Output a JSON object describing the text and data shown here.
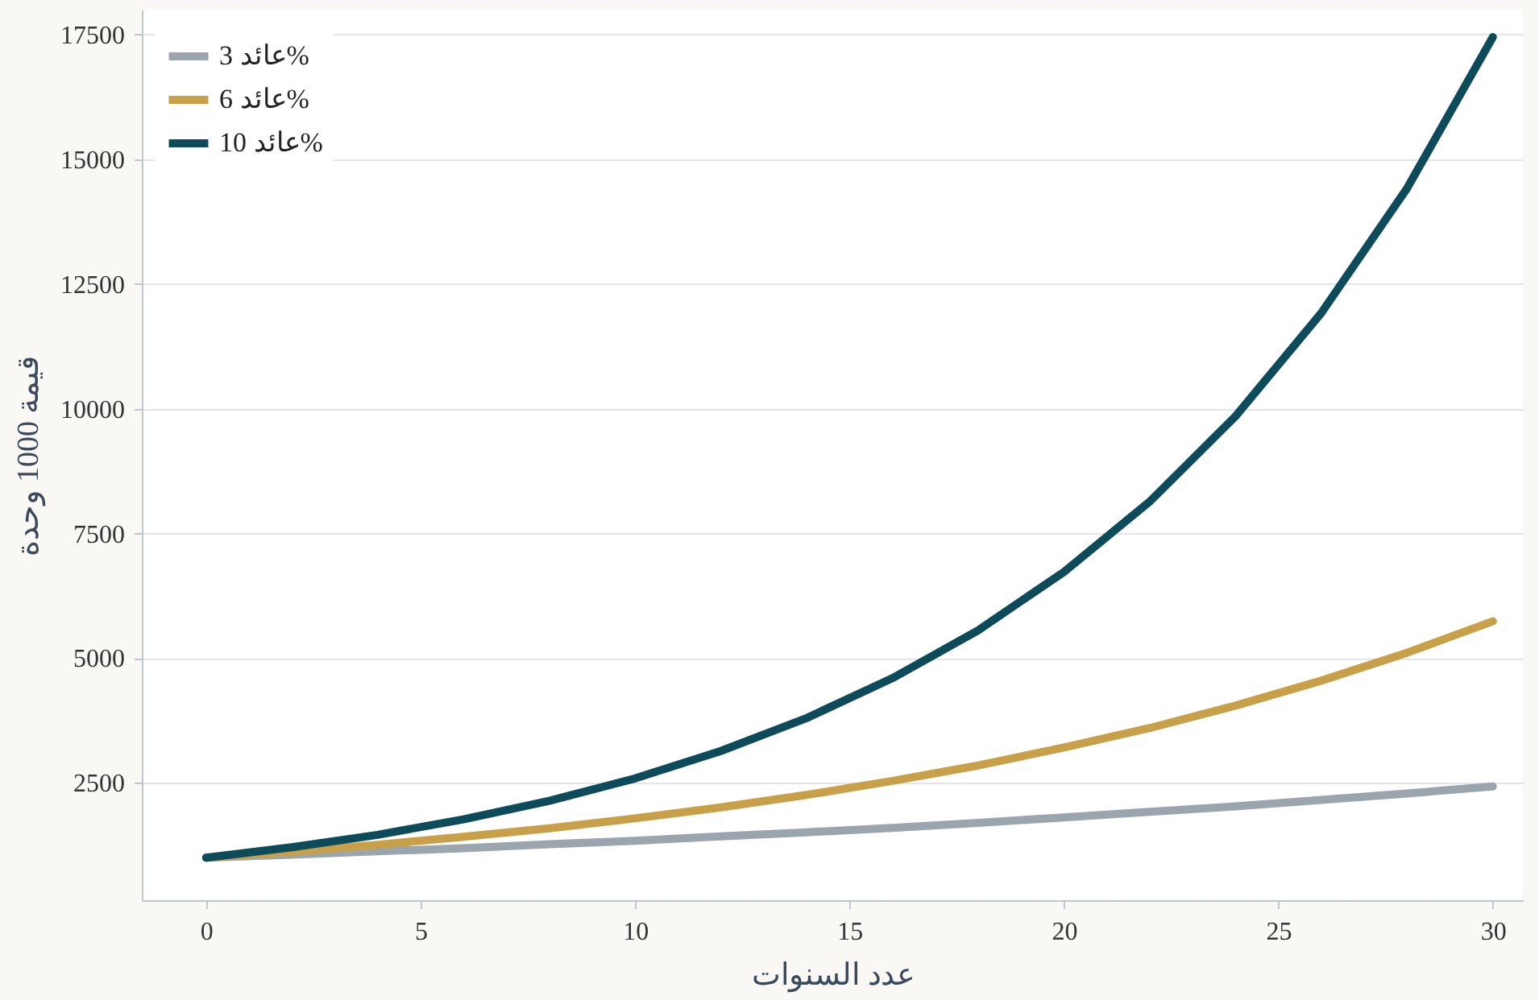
{
  "chart_data": {
    "type": "line",
    "xlabel": "عدد السنوات",
    "ylabel": "قيمة 1000 وحدة",
    "x": [
      0,
      2,
      4,
      6,
      8,
      10,
      12,
      14,
      16,
      18,
      20,
      22,
      24,
      26,
      28,
      30
    ],
    "series": [
      {
        "name": "عائد 3%",
        "color": "#9aa5ad",
        "values": [
          1000,
          1060,
          1130,
          1190,
          1270,
          1340,
          1430,
          1510,
          1600,
          1700,
          1810,
          1920,
          2030,
          2160,
          2290,
          2430
        ]
      },
      {
        "name": "عائد 6%",
        "color": "#c9a04a",
        "values": [
          1000,
          1120,
          1260,
          1420,
          1590,
          1790,
          2010,
          2260,
          2540,
          2850,
          3210,
          3600,
          4050,
          4550,
          5110,
          5740
        ]
      },
      {
        "name": "عائد 10%",
        "color": "#0d4a5a",
        "values": [
          1000,
          1210,
          1460,
          1770,
          2140,
          2590,
          3140,
          3800,
          4600,
          5560,
          6730,
          8140,
          9850,
          11920,
          14420,
          17450
        ]
      }
    ],
    "xlim": [
      -1.5,
      30.7
    ],
    "ylim": [
      150,
      18000
    ],
    "xticks": [
      0,
      5,
      10,
      15,
      20,
      25,
      30
    ],
    "yticks": [
      2500,
      5000,
      7500,
      10000,
      12500,
      15000,
      17500
    ],
    "grid": "y",
    "legend": "top left",
    "marker": "none",
    "line_style": "solid"
  }
}
